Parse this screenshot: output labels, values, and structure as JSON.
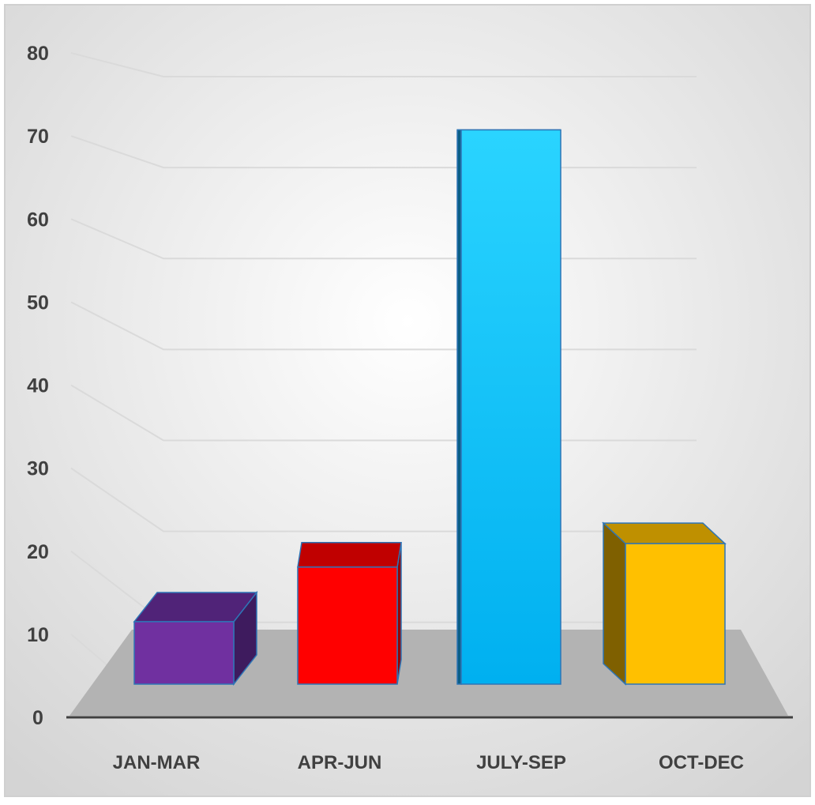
{
  "chart_data": {
    "type": "bar",
    "title": "",
    "xlabel": "",
    "ylabel": "",
    "categories": [
      "JAN-MAR",
      "APR-JUN",
      "JULY-SEP",
      "OCT-DEC"
    ],
    "values": [
      8,
      15,
      71,
      18
    ],
    "ylim": [
      0,
      80
    ],
    "yticks": [
      "0",
      "10",
      "20",
      "30",
      "40",
      "50",
      "60",
      "70",
      "80"
    ],
    "grid": true,
    "legend": "none",
    "three_d": true,
    "colors": {
      "JAN-MAR": {
        "front": "#7030A0",
        "top": "#502378",
        "side": "#3E1B5E"
      },
      "APR-JUN": {
        "front": "#FF0000",
        "top": "#C00000",
        "side": "#990000"
      },
      "JULY-SEP": {
        "front": "#19C2F5",
        "top": "#2FD6FF",
        "side": "#0B5E86"
      },
      "OCT-DEC": {
        "front": "#FFC000",
        "top": "#BF9000",
        "side": "#7F6000"
      }
    },
    "edge_color": "#2E75B6",
    "floor_color": "#B3B3B3",
    "background": [
      "#FFFFFF",
      "#D9D9D9"
    ]
  }
}
